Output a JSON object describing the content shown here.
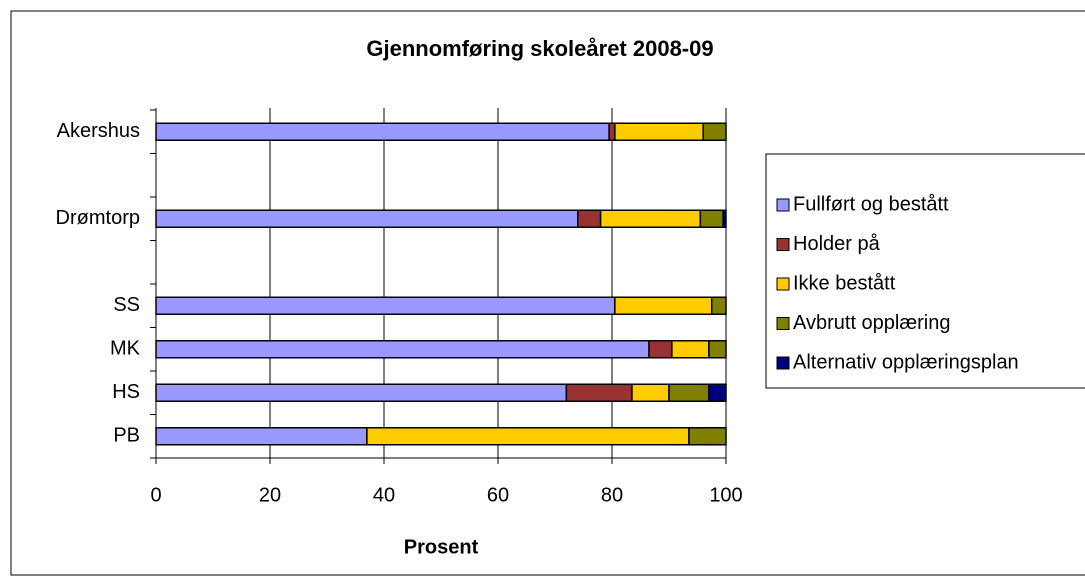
{
  "chart_data": {
    "type": "stacked-barh",
    "title": "Gjennomføring skoleåret 2008-09",
    "xlabel": "Prosent",
    "categories": [
      "Akershus",
      null,
      "Drømtorp",
      null,
      "SS",
      "MK",
      "HS",
      "PB"
    ],
    "series": [
      {
        "name": "Fullført og bestått",
        "color": "#9999ff",
        "values": [
          79.5,
          null,
          74,
          null,
          80.5,
          86.5,
          72,
          37
        ]
      },
      {
        "name": "Holder på",
        "color": "#993333",
        "values": [
          1,
          null,
          4,
          null,
          0,
          4,
          11.5,
          0
        ]
      },
      {
        "name": "Ikke bestått",
        "color": "#ffcc00",
        "values": [
          15.5,
          null,
          17.5,
          null,
          17,
          6.5,
          6.5,
          56.5
        ]
      },
      {
        "name": "Avbrutt opplæring",
        "color": "#808000",
        "values": [
          4,
          null,
          4,
          null,
          2.5,
          3,
          7,
          6.5
        ]
      },
      {
        "name": "Alternativ opplæringsplan",
        "color": "#000080",
        "values": [
          0,
          null,
          0.5,
          null,
          0,
          0,
          3,
          0
        ]
      }
    ],
    "xlim": [
      0,
      100
    ],
    "xticks": [
      0,
      20,
      40,
      60,
      80,
      100
    ],
    "grid": true,
    "legend": "right"
  }
}
